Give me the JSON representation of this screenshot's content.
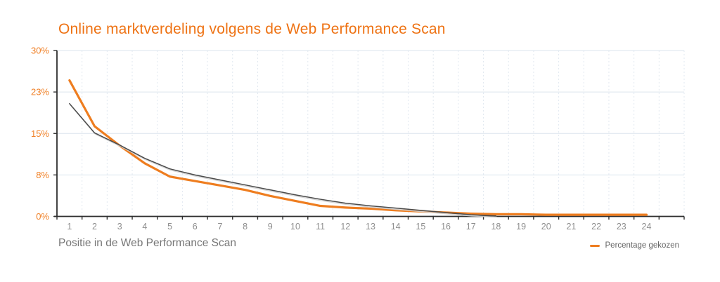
{
  "header": {
    "title": "Online marktverdeling volgens de Web Performance Scan"
  },
  "chart_data": {
    "type": "line",
    "title": "Online marktverdeling volgens de Web Performance Scan",
    "xlabel": "Positie in de Web Performance Scan",
    "ylabel": "",
    "x": [
      1,
      2,
      3,
      4,
      5,
      6,
      7,
      8,
      9,
      10,
      11,
      12,
      13,
      14,
      15,
      16,
      17,
      18,
      19,
      20,
      21,
      22,
      23,
      24
    ],
    "x_tick_labels": [
      "1",
      "2",
      "3",
      "4",
      "5",
      "6",
      "7",
      "8",
      "9",
      "10",
      "11",
      "12",
      "13",
      "14",
      "15",
      "16",
      "17",
      "18",
      "19",
      "20",
      "21",
      "22",
      "23",
      "24"
    ],
    "ylim": [
      0,
      30
    ],
    "y_ticks": [
      {
        "value": 0,
        "label": "0%"
      },
      {
        "value": 7.5,
        "label": "8%"
      },
      {
        "value": 15,
        "label": "15%"
      },
      {
        "value": 22.5,
        "label": "23%"
      },
      {
        "value": 30,
        "label": "30%"
      }
    ],
    "grid": true,
    "legend_position": "bottom-right",
    "series": [
      {
        "name": "",
        "in_legend": false,
        "color": "#4a4a4a",
        "values": [
          20.4,
          15.1,
          12.9,
          10.5,
          8.6,
          7.5,
          6.6,
          5.7,
          4.8,
          3.9,
          3.1,
          2.4,
          1.9,
          1.5,
          1.1,
          0.7,
          0.3,
          0.1
        ]
      },
      {
        "name": "Percentage gekozen",
        "in_legend": true,
        "color": "#ee7d1f",
        "values": [
          24.6,
          16.3,
          12.8,
          9.6,
          7.2,
          6.4,
          5.6,
          4.8,
          3.7,
          2.8,
          1.9,
          1.6,
          1.4,
          1.1,
          0.9,
          0.7,
          0.5,
          0.4,
          0.4,
          0.3,
          0.3,
          0.3,
          0.3,
          0.3
        ]
      }
    ],
    "colors": {
      "title": "#ee7213",
      "y_tick_label": "#f08026",
      "x_tick_label": "#8e8e8e",
      "axis": "#2f2f2f",
      "h_gridline": "#dbe4ee",
      "v_gridline": "#e1e8f0",
      "gray_line": "#4a4a4a",
      "gray_line_halo": "#cfcfcf",
      "orange_line": "#ee7d1f",
      "x_axis_title": "#767676",
      "legend_text": "#666666"
    }
  }
}
